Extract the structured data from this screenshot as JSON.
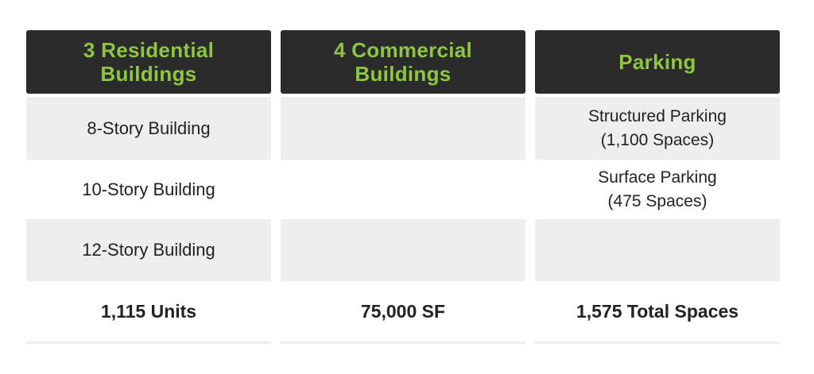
{
  "columns": [
    {
      "header": "3 Residential\nBuildings",
      "rows": [
        "8-Story Building",
        "10-Story Building",
        "12-Story Building"
      ],
      "total": "1,115 Units"
    },
    {
      "header": "4 Commercial\nBuildings",
      "rows": [
        "",
        "",
        ""
      ],
      "total": "75,000 SF"
    },
    {
      "header": "Parking",
      "rows": [
        "Structured Parking\n(1,100 Spaces)",
        "Surface Parking\n(475 Spaces)",
        ""
      ],
      "total": "1,575 Total Spaces"
    }
  ],
  "colors": {
    "header_bg": "#2b2b2b",
    "header_text": "#8dc63f",
    "stripe_bg": "#eeeeee",
    "body_text": "#222222"
  }
}
